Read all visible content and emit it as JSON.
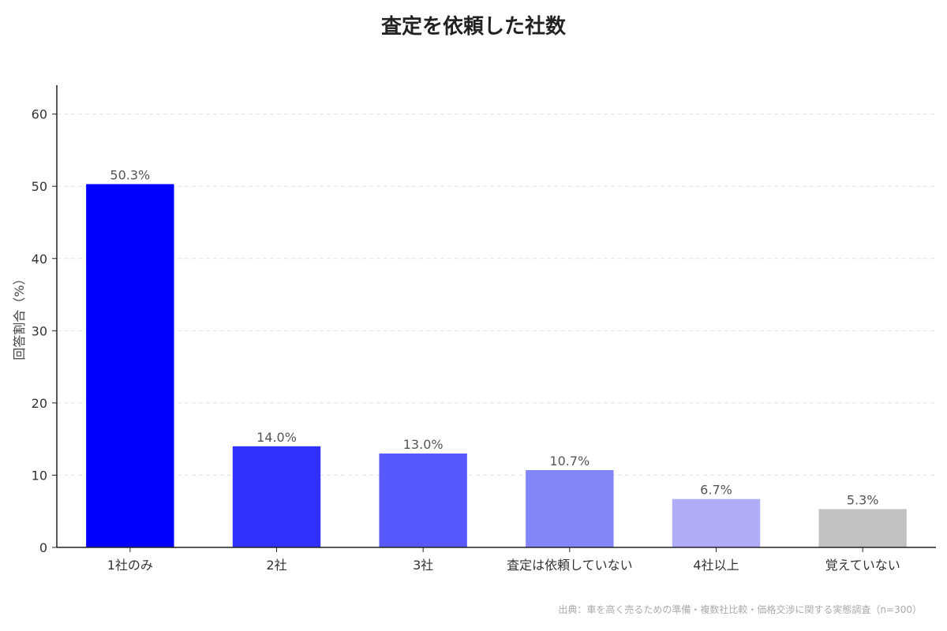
{
  "chart_data": {
    "type": "bar",
    "title": "査定を依頼した社数",
    "xlabel": "",
    "ylabel": "回答割合（%）",
    "ylim": [
      0,
      64
    ],
    "yticks": [
      0,
      10,
      20,
      30,
      40,
      50,
      60
    ],
    "grid": true,
    "categories": [
      "1社のみ",
      "2社",
      "3社",
      "査定は依頼していない",
      "4社以上",
      "覚えていない"
    ],
    "values": [
      50.3,
      14.0,
      13.0,
      10.7,
      6.7,
      5.3
    ],
    "value_labels": [
      "50.3%",
      "14.0%",
      "13.0%",
      "10.7%",
      "6.7%",
      "5.3%"
    ],
    "colors": [
      "#0000ff",
      "#3030ff",
      "#5858ff",
      "#8585fa",
      "#b0acf8",
      "#c2c0c2"
    ],
    "source": "出典：車を高く売るための準備・複数社比較・価格交渉に関する実態調査（n=300）"
  }
}
